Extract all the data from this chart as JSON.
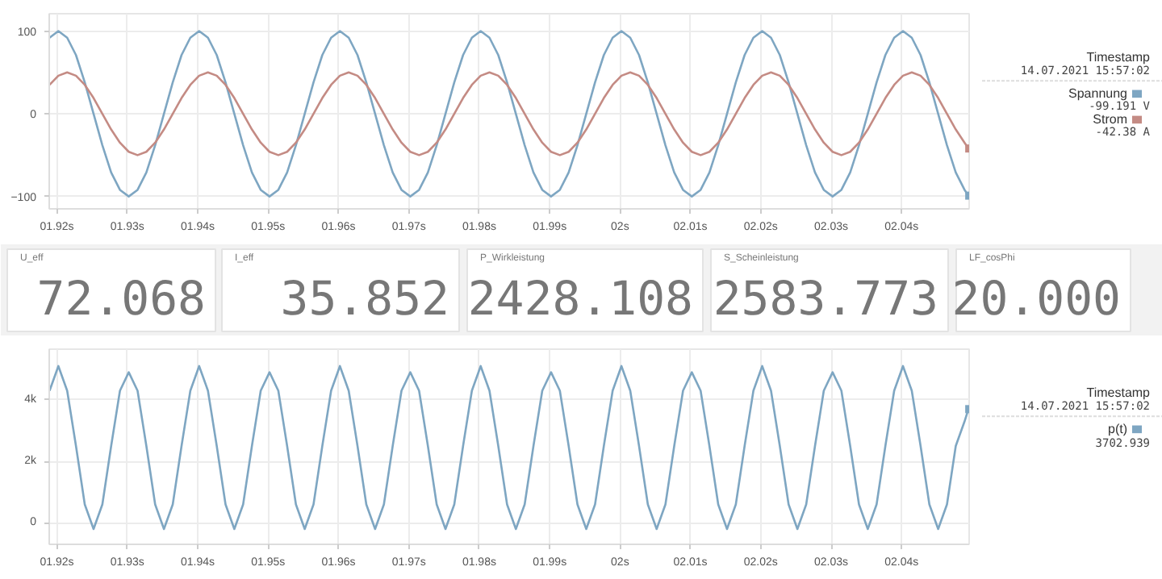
{
  "chart_data": [
    {
      "type": "line",
      "x": [
        1.91895,
        1.9202,
        1.92145,
        1.9227,
        1.92395,
        1.9252,
        1.92645,
        1.9277,
        1.92895,
        1.9302,
        1.93145,
        1.9327,
        1.93395,
        1.9352,
        1.93645,
        1.9377,
        1.93895,
        1.9402,
        1.94145,
        1.9427,
        1.94395,
        1.9452,
        1.94645,
        1.9477,
        1.94895,
        1.9502,
        1.95145,
        1.9527,
        1.95395,
        1.9552,
        1.95645,
        1.9577,
        1.95895,
        1.9602,
        1.96145,
        1.9627,
        1.96395,
        1.9652,
        1.96645,
        1.9677,
        1.96895,
        1.9702,
        1.97145,
        1.9727,
        1.97395,
        1.9752,
        1.97645,
        1.9777,
        1.97895,
        1.9802,
        1.98145,
        1.9827,
        1.98395,
        1.9852,
        1.98645,
        1.9877,
        1.98895,
        1.9902,
        1.99145,
        1.9927,
        1.99395,
        1.9952,
        1.99645,
        1.9977,
        1.99895,
        2.0002,
        2.00145,
        2.0027,
        2.00395,
        2.0052,
        2.00645,
        2.0077,
        2.00895,
        2.0102,
        2.01145,
        2.0127,
        2.01395,
        2.0152,
        2.01645,
        2.0177,
        2.01895,
        2.0202,
        2.02145,
        2.0227,
        2.02395,
        2.0252,
        2.02645,
        2.0277,
        2.02895,
        2.0302,
        2.03145,
        2.0327,
        2.03395,
        2.0352,
        2.03645,
        2.0377,
        2.03895,
        2.0402,
        2.04145,
        2.0427,
        2.04395,
        2.0452,
        2.04645,
        2.0477,
        2.04895,
        2.0495
      ],
      "series": [
        {
          "name": "Spannung",
          "color": "#7ea6c2",
          "values": [
            92,
            100,
            92,
            71,
            38,
            0,
            -38,
            -71,
            -92,
            -100,
            -92,
            -71,
            -38,
            0,
            38,
            71,
            92,
            100,
            92,
            71,
            38,
            0,
            -38,
            -71,
            -92,
            -100,
            -92,
            -71,
            -38,
            0,
            38,
            71,
            92,
            100,
            92,
            71,
            38,
            0,
            -38,
            -71,
            -92,
            -100,
            -92,
            -71,
            -38,
            0,
            38,
            71,
            92,
            100,
            92,
            71,
            38,
            0,
            -38,
            -71,
            -92,
            -100,
            -92,
            -71,
            -38,
            0,
            38,
            71,
            92,
            100,
            92,
            71,
            38,
            0,
            -38,
            -71,
            -92,
            -100,
            -92,
            -71,
            -38,
            0,
            38,
            71,
            92,
            100,
            92,
            71,
            38,
            0,
            -38,
            -71,
            -92,
            -100,
            -92,
            -71,
            -38,
            0,
            38,
            71,
            92,
            100,
            92,
            71,
            38,
            0,
            -38,
            -71,
            -92,
            -99
          ]
        },
        {
          "name": "Strom",
          "color": "#c48b84",
          "values": [
            35,
            46,
            50,
            46,
            35,
            19,
            0,
            -19,
            -35,
            -46,
            -50,
            -46,
            -35,
            -19,
            0,
            19,
            35,
            46,
            50,
            46,
            35,
            19,
            0,
            -19,
            -35,
            -46,
            -50,
            -46,
            -35,
            -19,
            0,
            19,
            35,
            46,
            50,
            46,
            35,
            19,
            0,
            -19,
            -35,
            -46,
            -50,
            -46,
            -35,
            -19,
            0,
            19,
            35,
            46,
            50,
            46,
            35,
            19,
            0,
            -19,
            -35,
            -46,
            -50,
            -46,
            -35,
            -19,
            0,
            19,
            35,
            46,
            50,
            46,
            35,
            19,
            0,
            -19,
            -35,
            -46,
            -50,
            -46,
            -35,
            -19,
            0,
            19,
            35,
            46,
            50,
            46,
            35,
            19,
            0,
            -19,
            -35,
            -46,
            -50,
            -46,
            -35,
            -19,
            0,
            19,
            35,
            46,
            50,
            46,
            35,
            19,
            0,
            -19,
            -35,
            -42
          ]
        }
      ],
      "xlim": [
        1.9189,
        2.0496
      ],
      "ylim": [
        -115,
        121
      ],
      "xticks": [
        {
          "value": 1.92,
          "label": "01.92s"
        },
        {
          "value": 1.93,
          "label": "01.93s"
        },
        {
          "value": 1.94,
          "label": "01.94s"
        },
        {
          "value": 1.95,
          "label": "01.95s"
        },
        {
          "value": 1.96,
          "label": "01.96s"
        },
        {
          "value": 1.97,
          "label": "01.97s"
        },
        {
          "value": 1.98,
          "label": "01.98s"
        },
        {
          "value": 1.99,
          "label": "01.99s"
        },
        {
          "value": 2.0,
          "label": "02s"
        },
        {
          "value": 2.01,
          "label": "02.01s"
        },
        {
          "value": 2.02,
          "label": "02.02s"
        },
        {
          "value": 2.03,
          "label": "02.03s"
        },
        {
          "value": 2.04,
          "label": "02.04s"
        }
      ],
      "yticks": [
        -100,
        0,
        100
      ],
      "grid": true,
      "legend": "right",
      "annotations": [
        "Timestamp",
        "14.07.2021 15:57:02",
        "-99.191 V",
        "-42.38 A"
      ]
    },
    {
      "type": "other",
      "categories": [
        "U_eff",
        "I_eff",
        "P_Wirkleistung",
        "S_Scheinleistung",
        "LF_cosPhi"
      ],
      "value_labels": [
        "72.068",
        "35.852",
        "2428.108",
        "2583.773",
        "20.000"
      ]
    },
    {
      "type": "line",
      "x": [
        1.91895,
        1.9202,
        1.92145,
        1.9227,
        1.92395,
        1.9252,
        1.92645,
        1.9277,
        1.92895,
        1.9302,
        1.93145,
        1.9327,
        1.93395,
        1.9352,
        1.93645,
        1.9377,
        1.93895,
        1.9402,
        1.94145,
        1.9427,
        1.94395,
        1.9452,
        1.94645,
        1.9477,
        1.94895,
        1.9502,
        1.95145,
        1.9527,
        1.95395,
        1.9552,
        1.95645,
        1.9577,
        1.95895,
        1.9602,
        1.96145,
        1.9627,
        1.96395,
        1.9652,
        1.96645,
        1.9677,
        1.96895,
        1.9702,
        1.97145,
        1.9727,
        1.97395,
        1.9752,
        1.97645,
        1.9777,
        1.97895,
        1.9802,
        1.98145,
        1.9827,
        1.98395,
        1.9852,
        1.98645,
        1.9877,
        1.98895,
        1.9902,
        1.99145,
        1.9927,
        1.99395,
        1.9952,
        1.99645,
        1.9977,
        1.99895,
        2.0002,
        2.00145,
        2.0027,
        2.00395,
        2.0052,
        2.00645,
        2.0077,
        2.00895,
        2.0102,
        2.01145,
        2.0127,
        2.01395,
        2.0152,
        2.01645,
        2.0177,
        2.01895,
        2.0202,
        2.02145,
        2.0227,
        2.02395,
        2.0252,
        2.02645,
        2.0277,
        2.02895,
        2.0302,
        2.03145,
        2.0327,
        2.03395,
        2.0352,
        2.03645,
        2.0377,
        2.03895,
        2.0402,
        2.04145,
        2.0427,
        2.04395,
        2.0452,
        2.04645,
        2.0477,
        2.04895,
        2.0495
      ],
      "series": [
        {
          "name": "p(t)",
          "color": "#7ea6c2",
          "values": [
            4300,
            5100,
            4300,
            2500,
            600,
            -200,
            600,
            2500,
            4300,
            4900,
            4300,
            2500,
            600,
            -200,
            600,
            2500,
            4300,
            5100,
            4300,
            2500,
            600,
            -200,
            600,
            2500,
            4300,
            4900,
            4300,
            2500,
            600,
            -200,
            600,
            2500,
            4300,
            5100,
            4300,
            2500,
            600,
            -200,
            600,
            2500,
            4300,
            4900,
            4300,
            2500,
            600,
            -200,
            600,
            2500,
            4300,
            5100,
            4300,
            2500,
            600,
            -200,
            600,
            2500,
            4300,
            4900,
            4300,
            2500,
            600,
            -200,
            600,
            2500,
            4300,
            5100,
            4300,
            2500,
            600,
            -200,
            600,
            2500,
            4300,
            4900,
            4300,
            2500,
            600,
            -200,
            600,
            2500,
            4300,
            5100,
            4300,
            2500,
            600,
            -200,
            600,
            2500,
            4300,
            4900,
            4300,
            2500,
            600,
            -200,
            600,
            2500,
            4300,
            5100,
            4300,
            2500,
            600,
            -200,
            600,
            2500,
            3300,
            3700
          ]
        }
      ],
      "xlim": [
        1.9189,
        2.0496
      ],
      "ylim": [
        -700,
        5650
      ],
      "xticks": [
        {
          "value": 1.92,
          "label": "01.92s"
        },
        {
          "value": 1.93,
          "label": "01.93s"
        },
        {
          "value": 1.94,
          "label": "01.94s"
        },
        {
          "value": 1.95,
          "label": "01.95s"
        },
        {
          "value": 1.96,
          "label": "01.96s"
        },
        {
          "value": 1.97,
          "label": "01.97s"
        },
        {
          "value": 1.98,
          "label": "01.98s"
        },
        {
          "value": 1.99,
          "label": "01.99s"
        },
        {
          "value": 2.0,
          "label": "02s"
        },
        {
          "value": 2.01,
          "label": "02.01s"
        },
        {
          "value": 2.02,
          "label": "02.02s"
        },
        {
          "value": 2.03,
          "label": "02.03s"
        },
        {
          "value": 2.04,
          "label": "02.04s"
        }
      ],
      "yticks": [
        0,
        {
          "value": 2000,
          "label": "2k"
        },
        {
          "value": 4000,
          "label": "4k"
        }
      ],
      "grid": true,
      "legend": "right",
      "annotations": [
        "Timestamp",
        "14.07.2021 15:57:02",
        "3702.939"
      ]
    }
  ]
}
